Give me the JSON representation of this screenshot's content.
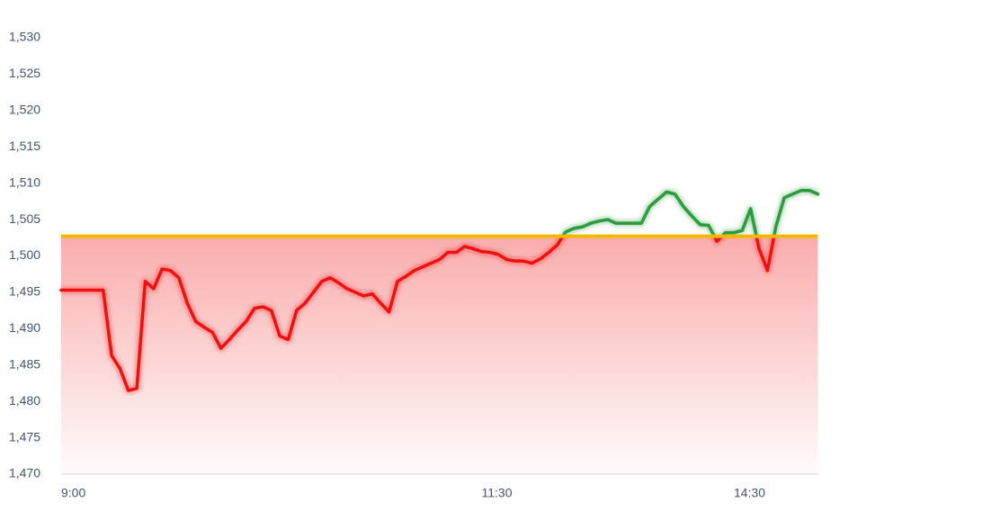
{
  "chart_data": {
    "type": "line",
    "categories": [
      "9:00",
      null,
      null,
      null,
      null,
      null,
      null,
      null,
      null,
      null,
      null,
      null,
      null,
      null,
      null,
      null,
      null,
      null,
      null,
      null,
      null,
      null,
      null,
      null,
      null,
      null,
      null,
      null,
      null,
      null,
      null,
      null,
      null,
      null,
      null,
      null,
      null,
      null,
      null,
      null,
      null,
      null,
      null,
      null,
      null,
      null,
      null,
      null,
      null,
      null,
      "11:30",
      null,
      null,
      null,
      null,
      null,
      null,
      null,
      null,
      null,
      null,
      null,
      null,
      null,
      null,
      null,
      null,
      null,
      null,
      null,
      null,
      null,
      null,
      null,
      null,
      null,
      null,
      null,
      null,
      null,
      "14:30",
      null,
      null,
      null,
      null,
      null,
      null,
      null,
      null,
      null,
      null
    ],
    "values": [
      1495.3,
      1495.3,
      1495.3,
      1495.3,
      1495.3,
      1495.3,
      1486.3,
      1484.5,
      1481.5,
      1481.8,
      1496.5,
      1495.5,
      1498.2,
      1498.0,
      1497.0,
      1493.5,
      1491.0,
      1490.2,
      1489.5,
      1487.3,
      1488.5,
      1489.8,
      1491.0,
      1492.8,
      1493.0,
      1492.5,
      1489.0,
      1488.5,
      1492.5,
      1493.5,
      1495.0,
      1496.5,
      1497.0,
      1496.3,
      1495.5,
      1495.0,
      1494.5,
      1494.8,
      1493.5,
      1492.3,
      1496.5,
      1497.2,
      1498.0,
      1498.5,
      1499.0,
      1499.5,
      1500.5,
      1500.5,
      1501.3,
      1501.0,
      1500.6,
      1500.5,
      1500.2,
      1499.5,
      1499.3,
      1499.3,
      1499.0,
      1499.6,
      1500.5,
      1501.5,
      1503.3,
      1503.8,
      1504.0,
      1504.5,
      1504.8,
      1505.0,
      1504.5,
      1504.5,
      1504.5,
      1504.5,
      1506.8,
      1507.8,
      1508.8,
      1508.5,
      1506.8,
      1505.5,
      1504.3,
      1504.2,
      1502.0,
      1503.2,
      1503.2,
      1503.5,
      1506.5,
      1501.0,
      1498.0,
      1504.0,
      1508.0,
      1508.5,
      1509.0,
      1509.0,
      1508.5
    ],
    "reference": 1502.7,
    "reference_color": "#f5b800",
    "up_color": "#2e9a3e",
    "down_color": "#ee1111",
    "fill_color": "#f44848",
    "ylim": [
      1470,
      1530
    ],
    "yticks": [
      {
        "value": 1470,
        "label": "1,470"
      },
      {
        "value": 1475,
        "label": "1,475"
      },
      {
        "value": 1480,
        "label": "1,480"
      },
      {
        "value": 1485,
        "label": "1,485"
      },
      {
        "value": 1490,
        "label": "1,490"
      },
      {
        "value": 1495,
        "label": "1,495"
      },
      {
        "value": 1500,
        "label": "1,500"
      },
      {
        "value": 1505,
        "label": "1,505"
      },
      {
        "value": 1510,
        "label": "1,510"
      },
      {
        "value": 1515,
        "label": "1,515"
      },
      {
        "value": 1520,
        "label": "1,520"
      },
      {
        "value": 1525,
        "label": "1,525"
      },
      {
        "value": 1530,
        "label": "1,530"
      }
    ],
    "grid": false
  }
}
